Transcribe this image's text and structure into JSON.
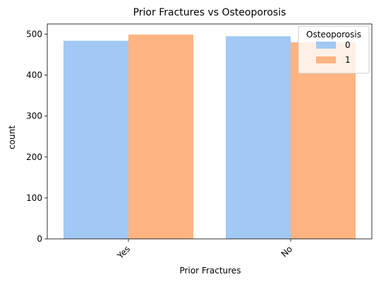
{
  "chart_data": {
    "type": "bar",
    "title": "Prior Fractures vs Osteoporosis",
    "xlabel": "Prior Fractures",
    "ylabel": "count",
    "categories": [
      "Yes",
      "No"
    ],
    "series": [
      {
        "name": "0",
        "values": [
          484,
          495
        ]
      },
      {
        "name": "1",
        "values": [
          499,
          480
        ]
      }
    ],
    "ylim": [
      0,
      525
    ],
    "yticks": [
      "0",
      "100",
      "200",
      "300",
      "400",
      "500"
    ],
    "grid": false,
    "legend": {
      "title": "Osteoporosis",
      "placement": "top-right"
    },
    "colors": [
      "#a1c9f4",
      "#ffb482"
    ]
  }
}
